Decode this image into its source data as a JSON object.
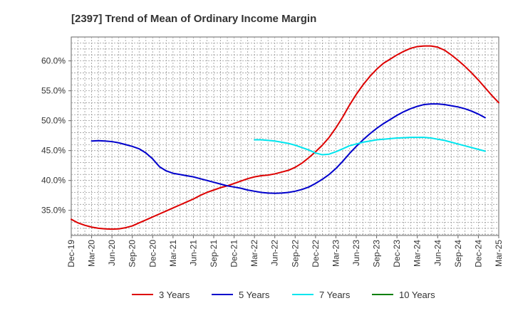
{
  "chart_data": {
    "type": "line",
    "title": "[2397]  Trend of Mean of Ordinary Income Margin",
    "xlabel": "",
    "ylabel": "",
    "x_ticks": [
      "Dec-19",
      "Mar-20",
      "Jun-20",
      "Sep-20",
      "Dec-20",
      "Mar-21",
      "Jun-21",
      "Sep-21",
      "Dec-21",
      "Mar-22",
      "Jun-22",
      "Sep-22",
      "Dec-22",
      "Mar-23",
      "Jun-23",
      "Sep-23",
      "Dec-23",
      "Mar-24",
      "Jun-24",
      "Sep-24",
      "Dec-24",
      "Mar-25"
    ],
    "y_ticks": [
      "35.0%",
      "40.0%",
      "45.0%",
      "50.0%",
      "55.0%",
      "60.0%"
    ],
    "y_tick_values": [
      35,
      40,
      45,
      50,
      55,
      60
    ],
    "ylim": [
      30.8,
      64.0
    ],
    "grid": true,
    "legend_position": "bottom",
    "series": [
      {
        "name": "3 Years",
        "color": "#dd0000",
        "points": [
          [
            "Dec-19",
            33.5
          ],
          [
            "Jan-20",
            32.9
          ],
          [
            "Feb-20",
            32.5
          ],
          [
            "Mar-20",
            32.2
          ],
          [
            "Apr-20",
            32.0
          ],
          [
            "May-20",
            31.9
          ],
          [
            "Jun-20",
            31.85
          ],
          [
            "Jul-20",
            31.9
          ],
          [
            "Aug-20",
            32.1
          ],
          [
            "Sep-20",
            32.4
          ],
          [
            "Oct-20",
            32.9
          ],
          [
            "Nov-20",
            33.4
          ],
          [
            "Dec-20",
            33.9
          ],
          [
            "Jan-21",
            34.4
          ],
          [
            "Feb-21",
            34.9
          ],
          [
            "Mar-21",
            35.4
          ],
          [
            "Apr-21",
            35.9
          ],
          [
            "May-21",
            36.4
          ],
          [
            "Jun-21",
            36.9
          ],
          [
            "Jul-21",
            37.5
          ],
          [
            "Aug-21",
            38.0
          ],
          [
            "Sep-21",
            38.4
          ],
          [
            "Oct-21",
            38.8
          ],
          [
            "Nov-21",
            39.1
          ],
          [
            "Dec-21",
            39.5
          ],
          [
            "Jan-22",
            39.9
          ],
          [
            "Feb-22",
            40.3
          ],
          [
            "Mar-22",
            40.6
          ],
          [
            "Apr-22",
            40.8
          ],
          [
            "May-22",
            40.9
          ],
          [
            "Jun-22",
            41.1
          ],
          [
            "Jul-22",
            41.4
          ],
          [
            "Aug-22",
            41.7
          ],
          [
            "Sep-22",
            42.2
          ],
          [
            "Oct-22",
            42.9
          ],
          [
            "Nov-22",
            43.8
          ],
          [
            "Dec-22",
            44.8
          ],
          [
            "Jan-23",
            45.9
          ],
          [
            "Feb-23",
            47.2
          ],
          [
            "Mar-23",
            48.8
          ],
          [
            "Apr-23",
            50.6
          ],
          [
            "May-23",
            52.6
          ],
          [
            "Jun-23",
            54.4
          ],
          [
            "Jul-23",
            56.0
          ],
          [
            "Aug-23",
            57.4
          ],
          [
            "Sep-23",
            58.6
          ],
          [
            "Oct-23",
            59.6
          ],
          [
            "Nov-23",
            60.3
          ],
          [
            "Dec-23",
            61.0
          ],
          [
            "Jan-24",
            61.6
          ],
          [
            "Feb-24",
            62.1
          ],
          [
            "Mar-24",
            62.4
          ],
          [
            "Apr-24",
            62.5
          ],
          [
            "May-24",
            62.5
          ],
          [
            "Jun-24",
            62.3
          ],
          [
            "Jul-24",
            61.8
          ],
          [
            "Aug-24",
            61.0
          ],
          [
            "Sep-24",
            60.1
          ],
          [
            "Oct-24",
            59.1
          ],
          [
            "Nov-24",
            58.0
          ],
          [
            "Dec-24",
            56.8
          ],
          [
            "Jan-25",
            55.5
          ],
          [
            "Feb-25",
            54.2
          ],
          [
            "Mar-25",
            53.0
          ]
        ]
      },
      {
        "name": "5 Years",
        "color": "#0000cc",
        "points": [
          [
            "Mar-20",
            46.6
          ],
          [
            "Apr-20",
            46.65
          ],
          [
            "May-20",
            46.6
          ],
          [
            "Jun-20",
            46.5
          ],
          [
            "Jul-20",
            46.3
          ],
          [
            "Aug-20",
            46.0
          ],
          [
            "Sep-20",
            45.7
          ],
          [
            "Oct-20",
            45.3
          ],
          [
            "Nov-20",
            44.6
          ],
          [
            "Dec-20",
            43.6
          ],
          [
            "Jan-21",
            42.3
          ],
          [
            "Feb-21",
            41.6
          ],
          [
            "Mar-21",
            41.2
          ],
          [
            "Apr-21",
            41.0
          ],
          [
            "May-21",
            40.8
          ],
          [
            "Jun-21",
            40.6
          ],
          [
            "Jul-21",
            40.3
          ],
          [
            "Aug-21",
            40.0
          ],
          [
            "Sep-21",
            39.7
          ],
          [
            "Oct-21",
            39.4
          ],
          [
            "Nov-21",
            39.1
          ],
          [
            "Dec-21",
            38.9
          ],
          [
            "Jan-22",
            38.7
          ],
          [
            "Feb-22",
            38.4
          ],
          [
            "Mar-22",
            38.2
          ],
          [
            "Apr-22",
            38.0
          ],
          [
            "May-22",
            37.9
          ],
          [
            "Jun-22",
            37.85
          ],
          [
            "Jul-22",
            37.9
          ],
          [
            "Aug-22",
            38.0
          ],
          [
            "Sep-22",
            38.2
          ],
          [
            "Oct-22",
            38.5
          ],
          [
            "Nov-22",
            38.9
          ],
          [
            "Dec-22",
            39.5
          ],
          [
            "Jan-23",
            40.2
          ],
          [
            "Feb-23",
            41.0
          ],
          [
            "Mar-23",
            42.0
          ],
          [
            "Apr-23",
            43.2
          ],
          [
            "May-23",
            44.5
          ],
          [
            "Jun-23",
            45.7
          ],
          [
            "Jul-23",
            46.8
          ],
          [
            "Aug-23",
            47.8
          ],
          [
            "Sep-23",
            48.7
          ],
          [
            "Oct-23",
            49.5
          ],
          [
            "Nov-23",
            50.2
          ],
          [
            "Dec-23",
            50.9
          ],
          [
            "Jan-24",
            51.5
          ],
          [
            "Feb-24",
            52.0
          ],
          [
            "Mar-24",
            52.4
          ],
          [
            "Apr-24",
            52.7
          ],
          [
            "May-24",
            52.8
          ],
          [
            "Jun-24",
            52.8
          ],
          [
            "Jul-24",
            52.7
          ],
          [
            "Aug-24",
            52.5
          ],
          [
            "Sep-24",
            52.3
          ],
          [
            "Oct-24",
            52.0
          ],
          [
            "Nov-24",
            51.6
          ],
          [
            "Dec-24",
            51.1
          ],
          [
            "Jan-25",
            50.5
          ]
        ]
      },
      {
        "name": "7 Years",
        "color": "#00e5ee",
        "points": [
          [
            "Mar-22",
            46.8
          ],
          [
            "Apr-22",
            46.8
          ],
          [
            "May-22",
            46.7
          ],
          [
            "Jun-22",
            46.6
          ],
          [
            "Jul-22",
            46.4
          ],
          [
            "Aug-22",
            46.2
          ],
          [
            "Sep-22",
            45.9
          ],
          [
            "Oct-22",
            45.5
          ],
          [
            "Nov-22",
            45.1
          ],
          [
            "Dec-22",
            44.6
          ],
          [
            "Jan-23",
            44.3
          ],
          [
            "Feb-23",
            44.4
          ],
          [
            "Mar-23",
            44.8
          ],
          [
            "Apr-23",
            45.3
          ],
          [
            "May-23",
            45.8
          ],
          [
            "Jun-23",
            46.1
          ],
          [
            "Jul-23",
            46.4
          ],
          [
            "Aug-23",
            46.6
          ],
          [
            "Sep-23",
            46.8
          ],
          [
            "Oct-23",
            46.9
          ],
          [
            "Nov-23",
            47.0
          ],
          [
            "Dec-23",
            47.1
          ],
          [
            "Jan-24",
            47.15
          ],
          [
            "Feb-24",
            47.2
          ],
          [
            "Mar-24",
            47.2
          ],
          [
            "Apr-24",
            47.2
          ],
          [
            "May-24",
            47.1
          ],
          [
            "Jun-24",
            46.9
          ],
          [
            "Jul-24",
            46.7
          ],
          [
            "Aug-24",
            46.4
          ],
          [
            "Sep-24",
            46.1
          ],
          [
            "Oct-24",
            45.8
          ],
          [
            "Nov-24",
            45.5
          ],
          [
            "Dec-24",
            45.2
          ],
          [
            "Jan-25",
            44.9
          ]
        ]
      },
      {
        "name": "10 Years",
        "color": "#008000",
        "points": []
      }
    ]
  }
}
